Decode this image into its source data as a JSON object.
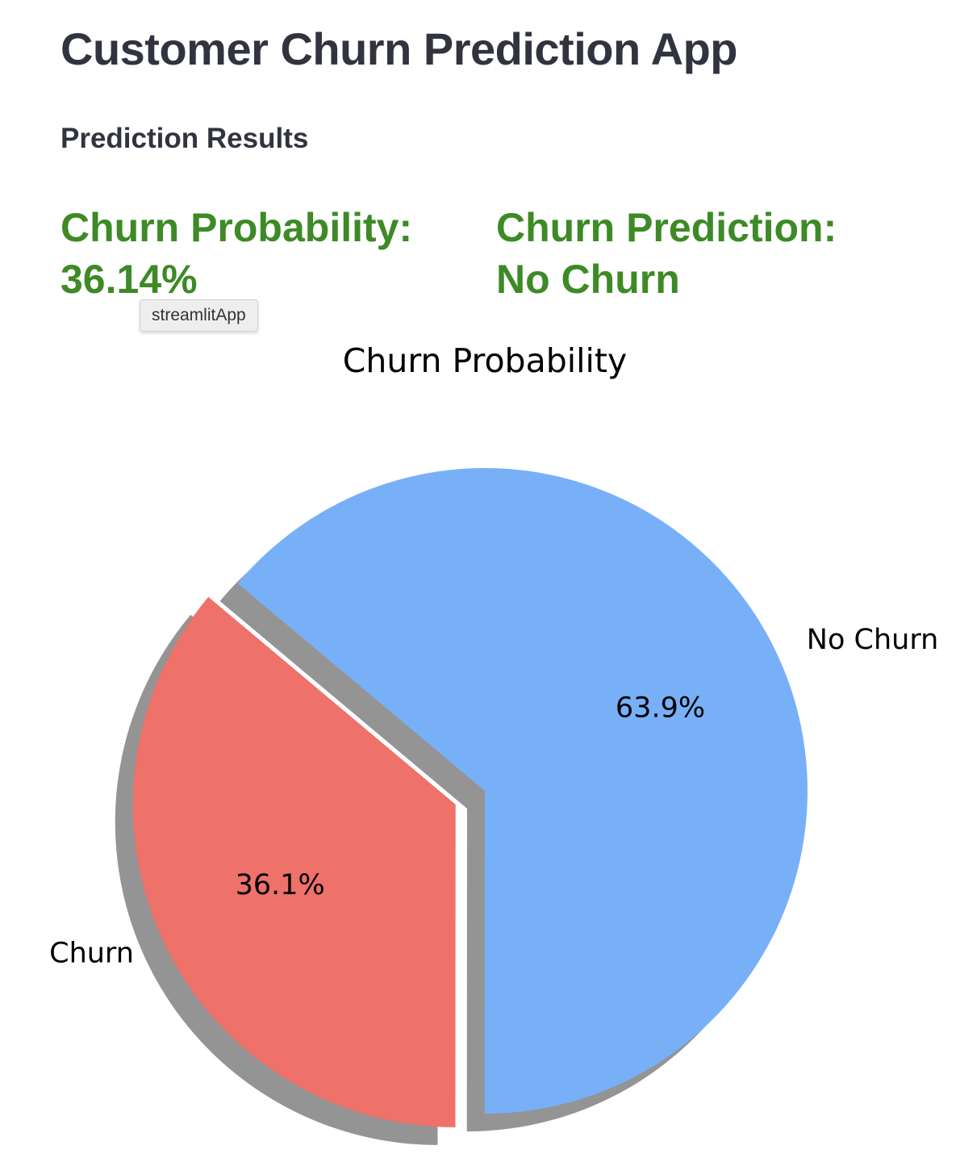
{
  "app": {
    "title": "Customer Churn Prediction App"
  },
  "results": {
    "section_title": "Prediction Results",
    "probability_text": "Churn Probability: 36.14%",
    "prediction_text": "Churn Prediction: No Churn",
    "text_color": "#3d8a26"
  },
  "tooltip": {
    "text": "streamlitApp"
  },
  "chart_data": {
    "type": "pie",
    "title": "Churn Probability",
    "labels": [
      "Churn",
      "No Churn"
    ],
    "values": [
      36.1,
      63.9
    ],
    "pct_labels": [
      "36.1%",
      "63.9%"
    ],
    "colors": [
      "#ee716a",
      "#78b0f8"
    ],
    "explode": [
      0.1,
      0
    ],
    "shadow": true,
    "start_angle_deg": 140
  }
}
